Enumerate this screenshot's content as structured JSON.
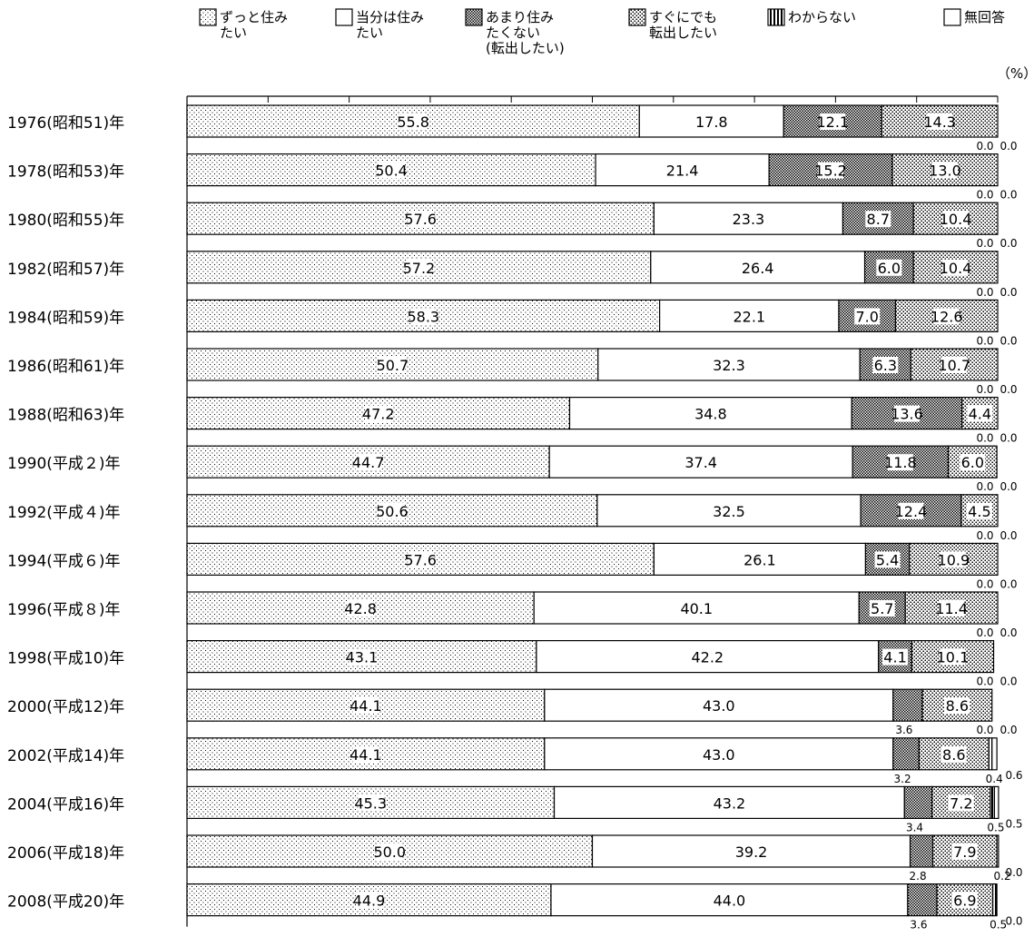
{
  "chart_data": {
    "type": "bar",
    "orientation": "horizontal",
    "stacked": true,
    "unit_label": "（%）",
    "xlim": [
      0,
      100
    ],
    "grid": false,
    "legend_position": "top",
    "series": [
      {
        "name": "ずっと住みたい",
        "legend_lines": [
          "ずっと住み",
          "たい"
        ],
        "pattern": "fine-dots"
      },
      {
        "name": "当分は住みたい",
        "legend_lines": [
          "当分は住み",
          "たい"
        ],
        "pattern": "blank"
      },
      {
        "name": "あまり住みたくない（転出したい）",
        "legend_lines": [
          "あまり住み",
          "たくない",
          "(転出したい)"
        ],
        "pattern": "dense-checker"
      },
      {
        "name": "すぐにでも転出したい",
        "legend_lines": [
          "すぐにでも",
          "転出したい"
        ],
        "pattern": "coarse-dots"
      },
      {
        "name": "わからない",
        "legend_lines": [
          "わからない"
        ],
        "pattern": "vertical-lines"
      },
      {
        "name": "無回答",
        "legend_lines": [
          "無回答"
        ],
        "pattern": "blank"
      }
    ],
    "categories": [
      "1976(昭和51)年",
      "1978(昭和53)年",
      "1980(昭和55)年",
      "1982(昭和57)年",
      "1984(昭和59)年",
      "1986(昭和61)年",
      "1988(昭和63)年",
      "1990(平成２)年",
      "1992(平成４)年",
      "1994(平成６)年",
      "1996(平成８)年",
      "1998(平成10)年",
      "2000(平成12)年",
      "2002(平成14)年",
      "2004(平成16)年",
      "2006(平成18)年",
      "2008(平成20)年"
    ],
    "values": [
      [
        55.8,
        17.8,
        12.1,
        14.3,
        0.0,
        0.0
      ],
      [
        50.4,
        21.4,
        15.2,
        13.0,
        0.0,
        0.0
      ],
      [
        57.6,
        23.3,
        8.7,
        10.4,
        0.0,
        0.0
      ],
      [
        57.2,
        26.4,
        6.0,
        10.4,
        0.0,
        0.0
      ],
      [
        58.3,
        22.1,
        7.0,
        12.6,
        0.0,
        0.0
      ],
      [
        50.7,
        32.3,
        6.3,
        10.7,
        0.0,
        0.0
      ],
      [
        47.2,
        34.8,
        13.6,
        4.4,
        0.0,
        0.0
      ],
      [
        44.7,
        37.4,
        11.8,
        6.0,
        0.0,
        0.0
      ],
      [
        50.6,
        32.5,
        12.4,
        4.5,
        0.0,
        0.0
      ],
      [
        57.6,
        26.1,
        5.4,
        10.9,
        0.0,
        0.0
      ],
      [
        42.8,
        40.1,
        5.7,
        11.4,
        0.0,
        0.0
      ],
      [
        43.1,
        42.2,
        4.1,
        10.1,
        0.0,
        0.0
      ],
      [
        44.1,
        43.0,
        3.6,
        8.6,
        0.0,
        0.0
      ],
      [
        44.1,
        43.0,
        3.2,
        8.6,
        0.4,
        0.6
      ],
      [
        45.3,
        43.2,
        3.4,
        7.2,
        0.5,
        0.5
      ],
      [
        50.0,
        39.2,
        2.8,
        7.9,
        0.2,
        0.0
      ],
      [
        44.9,
        44.0,
        3.6,
        6.9,
        0.5,
        0.0
      ]
    ]
  }
}
